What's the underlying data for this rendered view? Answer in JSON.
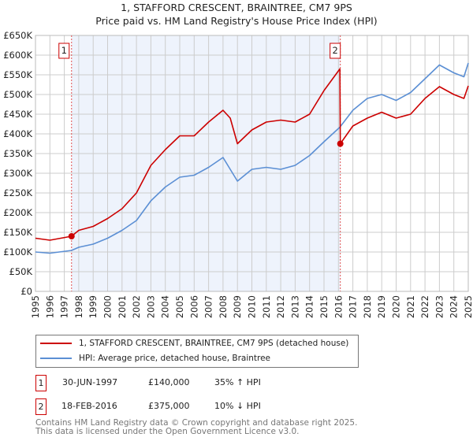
{
  "chart_data": {
    "type": "line",
    "title": "1, STAFFORD CRESCENT, BRAINTREE, CM7 9PS",
    "subtitle": "Price paid vs. HM Land Registry's House Price Index (HPI)",
    "xlim": [
      1995,
      2025
    ],
    "ylim": [
      0,
      650000
    ],
    "yticks": [
      0,
      50000,
      100000,
      150000,
      200000,
      250000,
      300000,
      350000,
      400000,
      450000,
      500000,
      550000,
      600000,
      650000
    ],
    "ytick_labels": [
      "£0",
      "£50K",
      "£100K",
      "£150K",
      "£200K",
      "£250K",
      "£300K",
      "£350K",
      "£400K",
      "£450K",
      "£500K",
      "£550K",
      "£600K",
      "£650K"
    ],
    "xticks": [
      "1995",
      "1996",
      "1997",
      "1998",
      "1999",
      "2000",
      "2001",
      "2002",
      "2003",
      "2004",
      "2005",
      "2006",
      "2007",
      "2008",
      "2009",
      "2010",
      "2011",
      "2012",
      "2013",
      "2014",
      "2015",
      "2016",
      "2017",
      "2018",
      "2019",
      "2020",
      "2021",
      "2022",
      "2023",
      "2024",
      "2025"
    ],
    "grid": true,
    "series": [
      {
        "name": "1, STAFFORD CRESCENT, BRAINTREE, CM7 9PS (detached house)",
        "color": "#cc0000",
        "x": [
          1995,
          1996,
          1997.5,
          1998,
          1999,
          2000,
          2001,
          2002,
          2003,
          2004,
          2005,
          2006,
          2007,
          2008,
          2008.5,
          2009,
          2010,
          2011,
          2012,
          2013,
          2014,
          2015,
          2016.1,
          2016.13,
          2017,
          2018,
          2019,
          2020,
          2021,
          2022,
          2023,
          2024,
          2024.7,
          2025
        ],
        "y": [
          135000,
          130000,
          140000,
          155000,
          165000,
          185000,
          210000,
          250000,
          320000,
          360000,
          395000,
          395000,
          430000,
          460000,
          440000,
          375000,
          410000,
          430000,
          435000,
          430000,
          450000,
          510000,
          565000,
          375000,
          420000,
          440000,
          455000,
          440000,
          450000,
          490000,
          520000,
          500000,
          490000,
          522000
        ]
      },
      {
        "name": "HPI: Average price, detached house, Braintree",
        "color": "#5b8fd4",
        "x": [
          1995,
          1996,
          1997.5,
          1998,
          1999,
          2000,
          2001,
          2002,
          2003,
          2004,
          2005,
          2006,
          2007,
          2008,
          2009,
          2010,
          2011,
          2012,
          2013,
          2014,
          2015,
          2016.1,
          2017,
          2018,
          2019,
          2020,
          2021,
          2022,
          2023,
          2024,
          2024.7,
          2025
        ],
        "y": [
          100000,
          97000,
          104000,
          112000,
          120000,
          135000,
          155000,
          180000,
          230000,
          265000,
          290000,
          295000,
          315000,
          340000,
          280000,
          310000,
          315000,
          310000,
          320000,
          345000,
          380000,
          417000,
          460000,
          490000,
          500000,
          485000,
          505000,
          540000,
          575000,
          555000,
          545000,
          580000
        ]
      }
    ],
    "sales": [
      {
        "label": "1",
        "x": 1997.5,
        "y": 140000,
        "date": "30-JUN-1997",
        "price": "£140,000",
        "hpi": "35% ↑ HPI"
      },
      {
        "label": "2",
        "x": 2016.13,
        "y": 375000,
        "date": "18-FEB-2016",
        "price": "£375,000",
        "hpi": "10% ↓ HPI"
      }
    ]
  },
  "footer": {
    "line1": "Contains HM Land Registry data © Crown copyright and database right 2025.",
    "line2": "This data is licensed under the Open Government Licence v3.0."
  }
}
